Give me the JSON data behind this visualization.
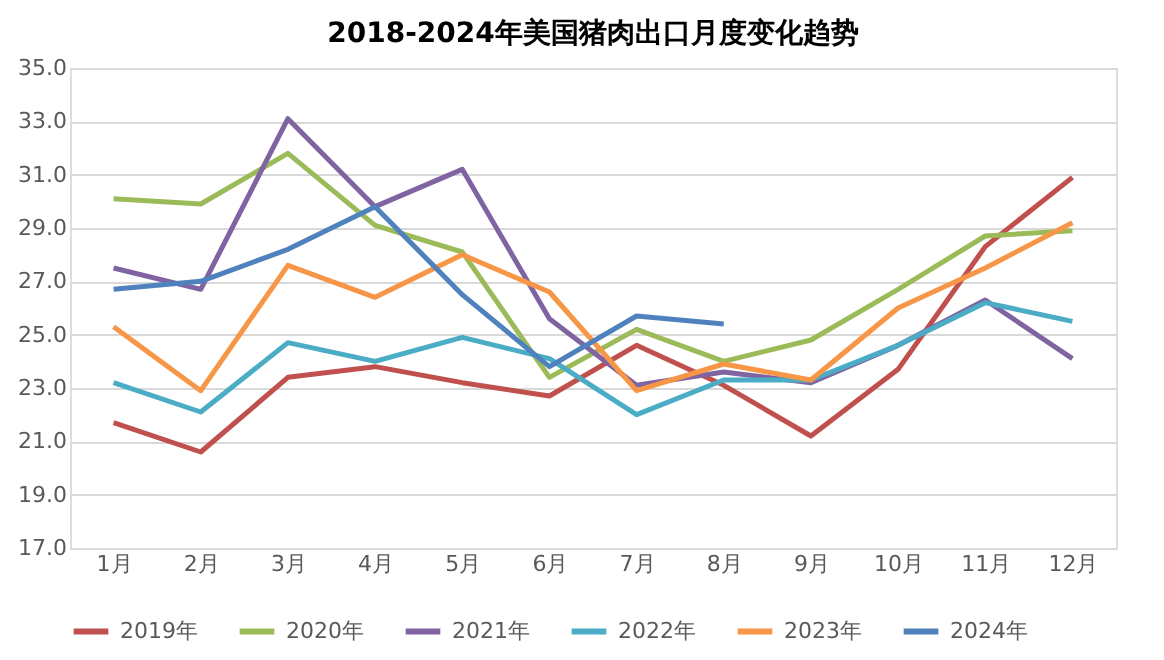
{
  "chart_data": {
    "type": "line",
    "title": "2018-2024年美国猪肉出口月度变化趋势",
    "categories": [
      "1月",
      "2月",
      "3月",
      "4月",
      "5月",
      "6月",
      "7月",
      "8月",
      "9月",
      "10月",
      "11月",
      "12月"
    ],
    "ylim": [
      17,
      35
    ],
    "yticks": [
      {
        "value": 17,
        "label": "17.0"
      },
      {
        "value": 19,
        "label": "19.0"
      },
      {
        "value": 21,
        "label": "21.0"
      },
      {
        "value": 23,
        "label": "23.0"
      },
      {
        "value": 25,
        "label": "25.0"
      },
      {
        "value": 27,
        "label": "27.0"
      },
      {
        "value": 29,
        "label": "29.0"
      },
      {
        "value": 31,
        "label": "31.0"
      },
      {
        "value": 33,
        "label": "33.0"
      },
      {
        "value": 35,
        "label": "35.0"
      }
    ],
    "grid": "y",
    "legend": "bottom",
    "marker": "none",
    "line_style": "solid",
    "series": [
      {
        "name": "2019年",
        "color": "#c0504d",
        "values": [
          21.7,
          20.6,
          23.4,
          23.8,
          23.2,
          22.7,
          24.6,
          23.1,
          21.2,
          23.7,
          28.3,
          30.9
        ]
      },
      {
        "name": "2020年",
        "color": "#9bbb59",
        "values": [
          30.1,
          29.9,
          31.8,
          29.1,
          28.1,
          23.4,
          25.2,
          24.0,
          24.8,
          26.7,
          28.7,
          28.9
        ]
      },
      {
        "name": "2021年",
        "color": "#8064a2",
        "values": [
          27.5,
          26.7,
          33.1,
          29.8,
          31.2,
          25.6,
          23.1,
          23.6,
          23.2,
          24.6,
          26.3,
          24.1
        ]
      },
      {
        "name": "2022年",
        "color": "#4bacc6",
        "values": [
          23.2,
          22.1,
          24.7,
          24.0,
          24.9,
          24.1,
          22.0,
          23.3,
          23.3,
          24.6,
          26.2,
          25.5
        ]
      },
      {
        "name": "2023年",
        "color": "#f79646",
        "values": [
          25.3,
          22.9,
          27.6,
          26.4,
          28.0,
          26.6,
          22.9,
          23.9,
          23.3,
          26.0,
          27.5,
          29.2
        ]
      },
      {
        "name": "2024年",
        "color": "#4f81bd",
        "values": [
          26.7,
          27.0,
          28.2,
          29.8,
          26.5,
          23.8,
          25.7,
          25.4,
          null,
          null,
          null,
          null
        ]
      }
    ]
  }
}
